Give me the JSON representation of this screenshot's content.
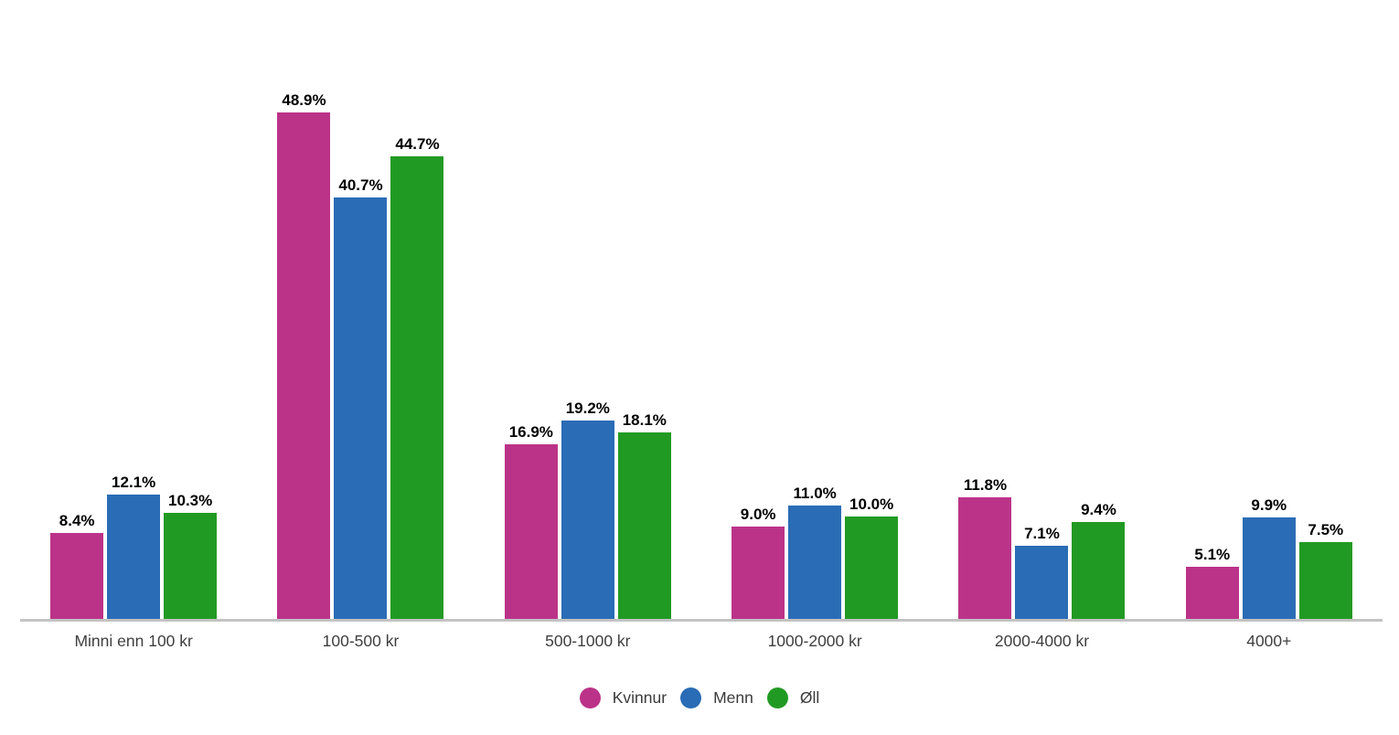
{
  "chart_data": {
    "type": "bar",
    "title": "",
    "xlabel": "",
    "ylabel": "",
    "ylim": [
      0,
      52.9
    ],
    "grid": false,
    "legend_position": "bottom",
    "bar_value_labels_shown": true,
    "categories": [
      "Minni enn 100 kr",
      "100-500 kr",
      "500-1000 kr",
      "1000-2000 kr",
      "2000-4000 kr",
      "4000+"
    ],
    "series": [
      {
        "name": "Kvinnur",
        "color": "#bb3388",
        "values": [
          8.4,
          48.9,
          16.9,
          9.0,
          11.8,
          5.1
        ],
        "labels": [
          "8.4%",
          "48.9%",
          "16.9%",
          "9.0%",
          "11.8%",
          "5.1%"
        ]
      },
      {
        "name": "Menn",
        "color": "#2a6cb5",
        "values": [
          12.1,
          40.7,
          19.2,
          11.0,
          7.1,
          9.9
        ],
        "labels": [
          "12.1%",
          "40.7%",
          "19.2%",
          "11.0%",
          "7.1%",
          "9.9%"
        ]
      },
      {
        "name": "Øll",
        "color": "#219a24",
        "values": [
          10.3,
          44.7,
          18.1,
          10.0,
          9.4,
          7.5
        ],
        "labels": [
          "10.3%",
          "44.7%",
          "18.1%",
          "10.0%",
          "9.4%",
          "7.5%"
        ]
      }
    ]
  },
  "legend": {
    "items": [
      {
        "label": "Kvinnur",
        "color": "#bb3388"
      },
      {
        "label": "Menn",
        "color": "#2a6cb5"
      },
      {
        "label": "Øll",
        "color": "#219a24"
      }
    ]
  },
  "colors": {
    "background": "#ffffff",
    "axis_line": "#c3c3c3",
    "value_label": "#000000",
    "category_label": "#3f3f3f",
    "legend_label": "#3a3a3a"
  }
}
